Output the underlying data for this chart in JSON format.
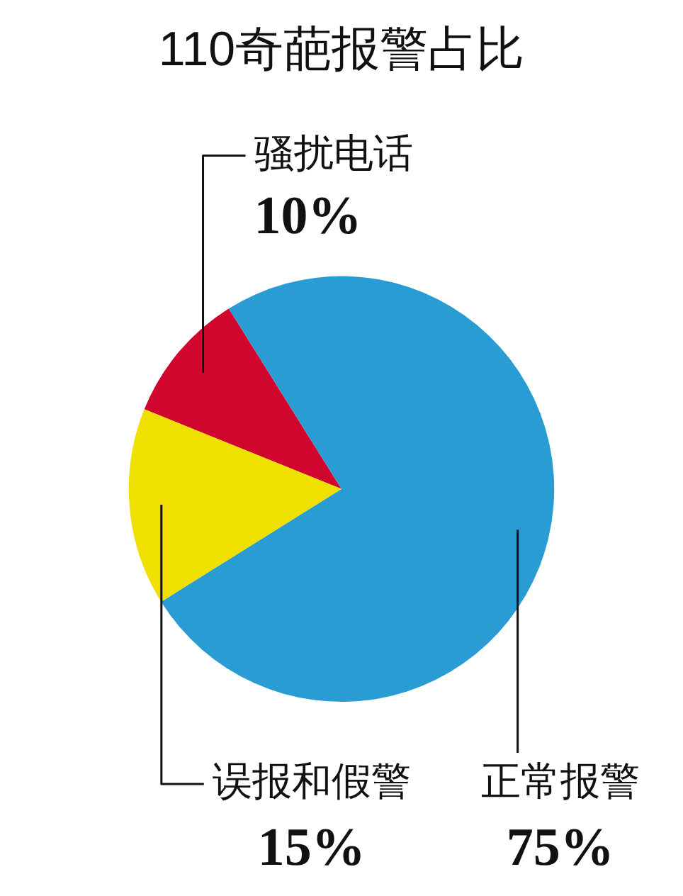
{
  "chart_data": {
    "type": "pie",
    "title": "110奇葩报警占比",
    "categories": [
      "骚扰电话",
      "正常报警",
      "误报和假警"
    ],
    "values": [
      10,
      75,
      15
    ],
    "value_labels": [
      "10%",
      "75%",
      "15%"
    ],
    "colors": [
      "#d0062e",
      "#2a9cd4",
      "#f0e000"
    ]
  }
}
